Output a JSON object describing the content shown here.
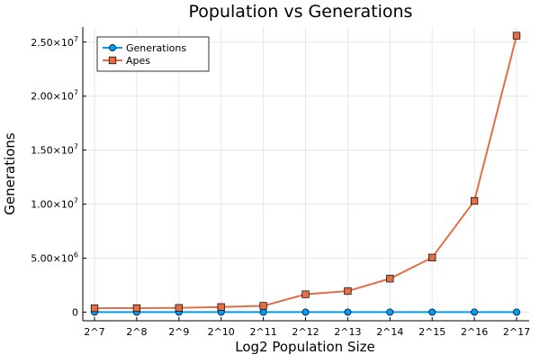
{
  "chart_data": {
    "type": "line",
    "title": "Population vs Generations",
    "xlabel": "Log2 Population Size",
    "ylabel": "Generations",
    "categories": [
      "2^7",
      "2^8",
      "2^9",
      "2^10",
      "2^11",
      "2^12",
      "2^13",
      "2^14",
      "2^15",
      "2^16",
      "2^17"
    ],
    "ylim": [
      -800000,
      26400000
    ],
    "y_ticks": [
      {
        "value": 0,
        "mantissa": "0",
        "exponent": ""
      },
      {
        "value": 5000000,
        "mantissa": "5.00×10",
        "exponent": "6"
      },
      {
        "value": 10000000,
        "mantissa": "1.00×10",
        "exponent": "7"
      },
      {
        "value": 15000000,
        "mantissa": "1.50×10",
        "exponent": "7"
      },
      {
        "value": 20000000,
        "mantissa": "2.00×10",
        "exponent": "7"
      },
      {
        "value": 25000000,
        "mantissa": "2.50×10",
        "exponent": "7"
      }
    ],
    "grid": true,
    "legend_position": "top-left",
    "series": [
      {
        "name": "Generations",
        "color": "#009af9",
        "marker": "circle",
        "values": [
          3,
          3,
          3,
          3,
          3,
          3,
          3,
          3,
          3,
          3,
          3
        ]
      },
      {
        "name": "Apes",
        "color": "#e26f46",
        "marker": "square",
        "values": [
          360000,
          370000,
          390000,
          470000,
          580000,
          1650000,
          1950000,
          3100000,
          5050000,
          10300000,
          25600000
        ]
      }
    ]
  }
}
